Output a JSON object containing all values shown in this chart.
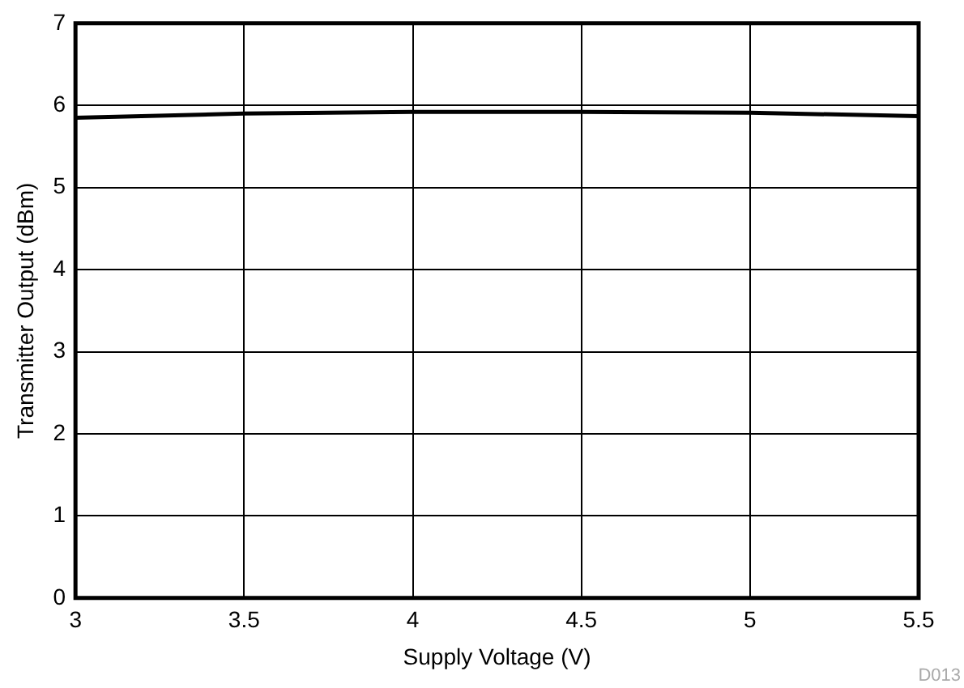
{
  "chart_data": {
    "type": "line",
    "xlabel": "Supply Voltage (V)",
    "ylabel": "Transmitter Output (dBm)",
    "x": [
      3,
      3.5,
      4,
      4.5,
      5,
      5.5
    ],
    "series": [
      {
        "color": "#000000",
        "values": [
          5.85,
          5.9,
          5.92,
          5.92,
          5.91,
          5.87
        ]
      }
    ],
    "xlim": [
      3,
      5.5
    ],
    "xticks": [
      3,
      3.5,
      4,
      4.5,
      5,
      5.5
    ],
    "ylim": [
      0,
      7
    ],
    "yticks": [
      0,
      1,
      2,
      3,
      4,
      5,
      6,
      7
    ],
    "grid": true,
    "legend": false,
    "marker": "none",
    "line_style": "solid",
    "annotations": [
      "D013"
    ]
  }
}
